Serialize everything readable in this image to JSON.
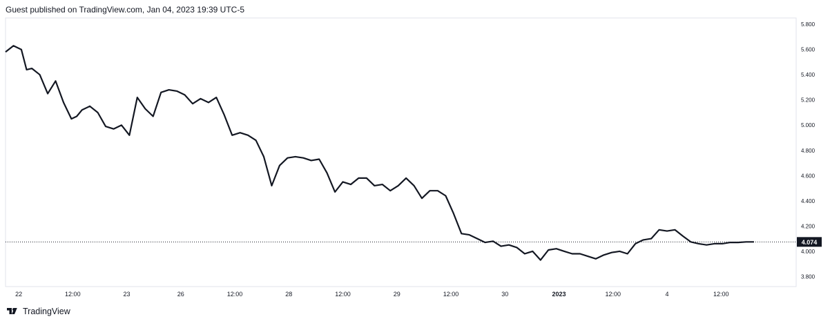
{
  "header": {
    "text": "Guest published on TradingView.com, Jan 04, 2023 19:39 UTC-5"
  },
  "footer": {
    "brand": "TradingView",
    "logo_icon": "tradingview-logo-icon"
  },
  "colors": {
    "line": "#131722",
    "grid": "#e0e3eb",
    "last_badge_bg": "#131722",
    "last_badge_text": "#ffffff"
  },
  "chart_data": {
    "type": "line",
    "title": "",
    "xlabel": "",
    "ylabel": "",
    "ylim": [
      3.72,
      5.85
    ],
    "y_ticks": [
      "5.800",
      "5.600",
      "5.400",
      "5.200",
      "5.000",
      "4.800",
      "4.600",
      "4.400",
      "4.200",
      "4.000",
      "3.800"
    ],
    "y_tick_values": [
      5.8,
      5.6,
      5.4,
      5.2,
      5.0,
      4.8,
      4.6,
      4.4,
      4.2,
      4.0,
      3.8
    ],
    "x_ticks": [
      "22",
      "12:00",
      "23",
      "26",
      "12:00",
      "28",
      "12:00",
      "29",
      "12:00",
      "30",
      "2023",
      "12:00",
      "4",
      "12:00"
    ],
    "x_tick_values": [
      0.5,
      2.55,
      4.6,
      6.65,
      8.7,
      10.75,
      12.8,
      14.85,
      16.9,
      18.95,
      21.0,
      23.05,
      25.1,
      27.15
    ],
    "x_range": [
      0,
      30
    ],
    "last_value": 4.074,
    "last_value_label": "4.074",
    "series": [
      {
        "x": [
          0.0,
          0.3,
          0.6,
          0.8,
          1.0,
          1.3,
          1.6,
          1.9,
          2.2,
          2.5,
          2.7,
          2.9,
          3.2,
          3.5,
          3.8,
          4.1,
          4.4,
          4.7,
          5.0,
          5.3,
          5.6,
          5.9,
          6.2,
          6.5,
          6.8,
          7.1,
          7.4,
          7.7,
          8.0,
          8.3,
          8.6,
          8.9,
          9.2,
          9.5,
          9.8,
          10.1,
          10.4,
          10.7,
          11.0,
          11.3,
          11.6,
          11.9,
          12.2,
          12.5,
          12.8,
          13.1,
          13.4,
          13.7,
          14.0,
          14.3,
          14.6,
          14.9,
          15.2,
          15.5,
          15.8,
          16.1,
          16.4,
          16.7,
          17.0,
          17.3,
          17.6,
          17.9,
          18.2,
          18.5,
          18.8,
          19.1,
          19.4,
          19.7,
          20.0,
          20.3,
          20.6,
          20.9,
          21.2,
          21.5,
          21.8,
          22.1,
          22.4,
          22.7,
          23.0,
          23.3,
          23.6,
          23.9,
          24.2,
          24.5,
          24.8,
          25.1,
          25.4,
          25.7,
          26.0,
          26.3,
          26.6,
          26.9,
          27.2,
          27.5,
          27.8,
          28.1,
          28.4
        ],
        "y": [
          5.58,
          5.63,
          5.6,
          5.44,
          5.45,
          5.4,
          5.25,
          5.35,
          5.18,
          5.05,
          5.07,
          5.12,
          5.15,
          5.1,
          4.99,
          4.97,
          5.0,
          4.92,
          5.22,
          5.13,
          5.07,
          5.26,
          5.28,
          5.27,
          5.24,
          5.17,
          5.21,
          5.18,
          5.22,
          5.08,
          4.92,
          4.94,
          4.92,
          4.88,
          4.75,
          4.52,
          4.68,
          4.74,
          4.75,
          4.74,
          4.72,
          4.73,
          4.62,
          4.47,
          4.55,
          4.53,
          4.58,
          4.58,
          4.52,
          4.53,
          4.48,
          4.52,
          4.58,
          4.52,
          4.42,
          4.48,
          4.48,
          4.44,
          4.3,
          4.14,
          4.13,
          4.1,
          4.07,
          4.08,
          4.04,
          4.05,
          4.03,
          3.98,
          4.0,
          3.93,
          4.01,
          4.02,
          4.0,
          3.98,
          3.98,
          3.96,
          3.94,
          3.97,
          3.99,
          4.0,
          3.98,
          4.06,
          4.09,
          4.1,
          4.17,
          4.16,
          4.17,
          4.12,
          4.074,
          4.06,
          4.05,
          4.06,
          4.06,
          4.07,
          4.07,
          4.074,
          4.074
        ]
      }
    ]
  }
}
